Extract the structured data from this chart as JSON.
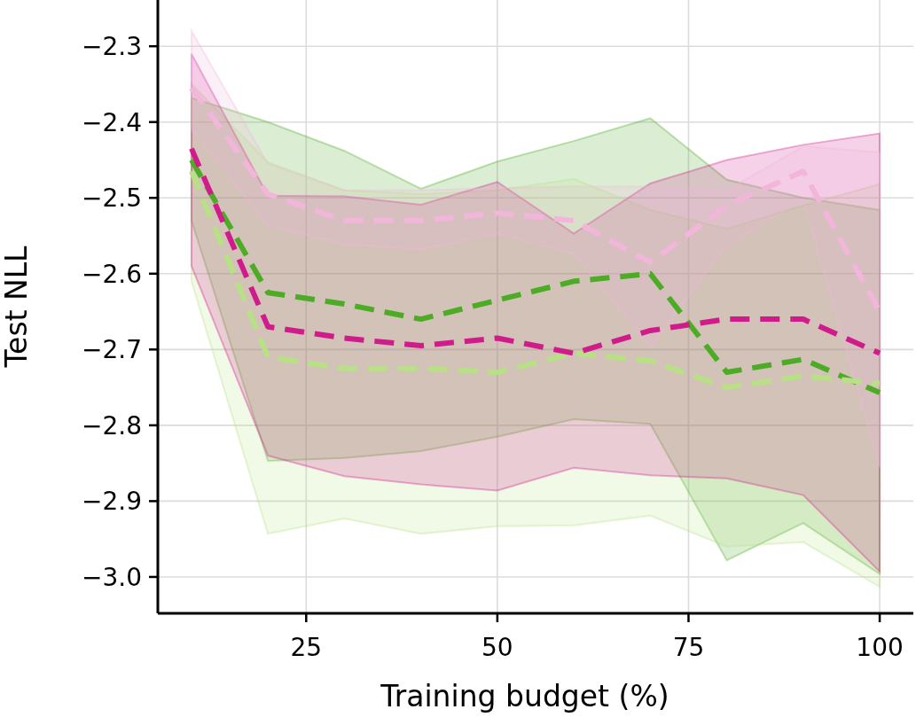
{
  "chart_data": {
    "type": "line",
    "xlabel": "Training budget (%)",
    "ylabel": "Test NLL",
    "x": [
      10,
      20,
      30,
      40,
      50,
      60,
      70,
      80,
      90,
      100
    ],
    "xlim": [
      5.6,
      104.4
    ],
    "xticks": [
      25,
      50,
      75,
      100
    ],
    "ylim": [
      -3.048,
      -2.239
    ],
    "yticks": [
      {
        "value": -3.0,
        "label": "−3.0"
      },
      {
        "value": -2.9,
        "label": "−2.9"
      },
      {
        "value": -2.8,
        "label": "−2.8"
      },
      {
        "value": -2.7,
        "label": "−2.7"
      },
      {
        "value": -2.6,
        "label": "−2.6"
      },
      {
        "value": -2.5,
        "label": "−2.5"
      },
      {
        "value": -2.4,
        "label": "−2.4"
      },
      {
        "value": -2.3,
        "label": "−2.3"
      }
    ],
    "grid": true,
    "line_style": "dashed",
    "series": [
      {
        "color": "#4dac26",
        "values": [
          -2.45,
          -2.625,
          -2.64,
          -2.66,
          -2.635,
          -2.61,
          -2.6,
          -2.73,
          -2.713,
          -2.757
        ],
        "upper": [
          -2.368,
          -2.4,
          -2.438,
          -2.488,
          -2.452,
          -2.425,
          -2.395,
          -2.476,
          -2.5,
          -2.516
        ],
        "lower": [
          -2.53,
          -2.847,
          -2.843,
          -2.834,
          -2.815,
          -2.792,
          -2.798,
          -2.978,
          -2.929,
          -2.996
        ]
      },
      {
        "color": "#b8e186",
        "values": [
          -2.465,
          -2.71,
          -2.725,
          -2.725,
          -2.73,
          -2.705,
          -2.715,
          -2.75,
          -2.735,
          -2.745
        ],
        "upper": [
          -2.35,
          -2.453,
          -2.49,
          -2.495,
          -2.49,
          -2.475,
          -2.516,
          -2.541,
          -2.51,
          -2.482
        ],
        "lower": [
          -2.61,
          -2.943,
          -2.923,
          -2.943,
          -2.933,
          -2.932,
          -2.919,
          -2.96,
          -2.954,
          -3.013
        ]
      },
      {
        "color": "#d01c8b",
        "values": [
          -2.435,
          -2.67,
          -2.685,
          -2.695,
          -2.685,
          -2.705,
          -2.675,
          -2.66,
          -2.66,
          -2.705
        ],
        "upper": [
          -2.31,
          -2.497,
          -2.498,
          -2.509,
          -2.479,
          -2.547,
          -2.481,
          -2.45,
          -2.43,
          -2.415
        ],
        "lower": [
          -2.59,
          -2.84,
          -2.867,
          -2.878,
          -2.886,
          -2.856,
          -2.866,
          -2.87,
          -2.892,
          -2.993
        ]
      },
      {
        "color": "#f1b6da",
        "values": [
          -2.355,
          -2.495,
          -2.53,
          -2.53,
          -2.52,
          -2.53,
          -2.585,
          -2.51,
          -2.465,
          -2.65
        ],
        "upper": [
          -2.28,
          -2.455,
          -2.49,
          -2.49,
          -2.487,
          -2.485,
          -2.485,
          -2.49,
          -2.432,
          -2.44
        ],
        "lower": [
          -2.41,
          -2.537,
          -2.561,
          -2.568,
          -2.547,
          -2.574,
          -2.697,
          -2.563,
          -2.502,
          -2.855
        ]
      }
    ]
  }
}
